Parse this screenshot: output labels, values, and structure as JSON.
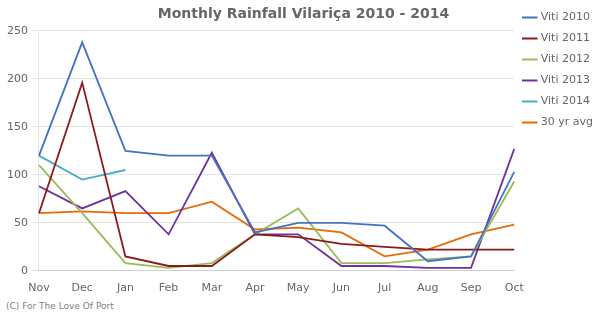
{
  "chart_data": {
    "type": "line",
    "title": "Monthly Rainfall Vilariça 2010 - 2014",
    "categories": [
      "Nov",
      "Dec",
      "Jan",
      "Feb",
      "Mar",
      "Apr",
      "May",
      "Jun",
      "Jul",
      "Aug",
      "Sep",
      "Oct"
    ],
    "series": [
      {
        "name": "Viti 2010",
        "color": "#4472C4",
        "values": [
          120,
          238,
          125,
          120,
          120,
          40,
          50,
          50,
          47,
          10,
          15,
          103
        ]
      },
      {
        "name": "Viti 2011",
        "color": "#8B1A1A",
        "values": [
          60,
          196,
          15,
          5,
          5,
          38,
          35,
          28,
          25,
          22,
          22,
          22
        ]
      },
      {
        "name": "Viti 2012",
        "color": "#9BBB59",
        "values": [
          110,
          60,
          8,
          3,
          8,
          38,
          65,
          8,
          8,
          12,
          15,
          93
        ]
      },
      {
        "name": "Viti 2013",
        "color": "#7030A0",
        "values": [
          88,
          65,
          83,
          38,
          123,
          38,
          38,
          5,
          5,
          3,
          3,
          127
        ]
      },
      {
        "name": "Viti 2014",
        "color": "#4BACC6",
        "values": [
          120,
          95,
          105,
          null,
          null,
          null,
          null,
          null,
          null,
          null,
          null,
          null
        ]
      },
      {
        "name": "30 yr avg",
        "color": "#E36C09",
        "values": [
          60,
          62,
          60,
          60,
          72,
          43,
          45,
          40,
          15,
          22,
          38,
          48
        ]
      }
    ],
    "ylim": [
      0,
      250
    ],
    "yticks": [
      0,
      50,
      100,
      150,
      200,
      250
    ],
    "grid": true,
    "legend": "right",
    "annotations": [
      "(C) For The Love Of Port"
    ]
  }
}
